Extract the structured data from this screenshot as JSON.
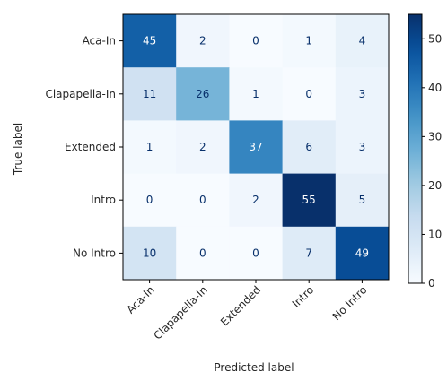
{
  "chart_data": {
    "type": "heatmap",
    "title": "",
    "xlabel": "Predicted label",
    "ylabel": "True label",
    "x_categories": [
      "Aca-In",
      "Clapapella-In",
      "Extended",
      "Intro",
      "No Intro"
    ],
    "y_categories": [
      "Aca-In",
      "Clapapella-In",
      "Extended",
      "Intro",
      "No Intro"
    ],
    "matrix": [
      [
        45,
        2,
        0,
        1,
        4
      ],
      [
        11,
        26,
        1,
        0,
        3
      ],
      [
        1,
        2,
        37,
        6,
        3
      ],
      [
        0,
        0,
        2,
        55,
        5
      ],
      [
        10,
        0,
        0,
        7,
        49
      ]
    ],
    "colormap": "Blues",
    "colorbar": {
      "range": [
        0,
        55
      ],
      "ticks": [
        0,
        10,
        20,
        30,
        40,
        50
      ],
      "tick_labels": [
        "0",
        "10",
        "20",
        "30",
        "40",
        "50"
      ]
    },
    "colors": {
      "low": "#f7fbff",
      "high": "#08306b",
      "text_dark": "#08306b",
      "text_light": "#ffffff"
    },
    "grid": false,
    "x_tick_rotation_deg": 45
  }
}
